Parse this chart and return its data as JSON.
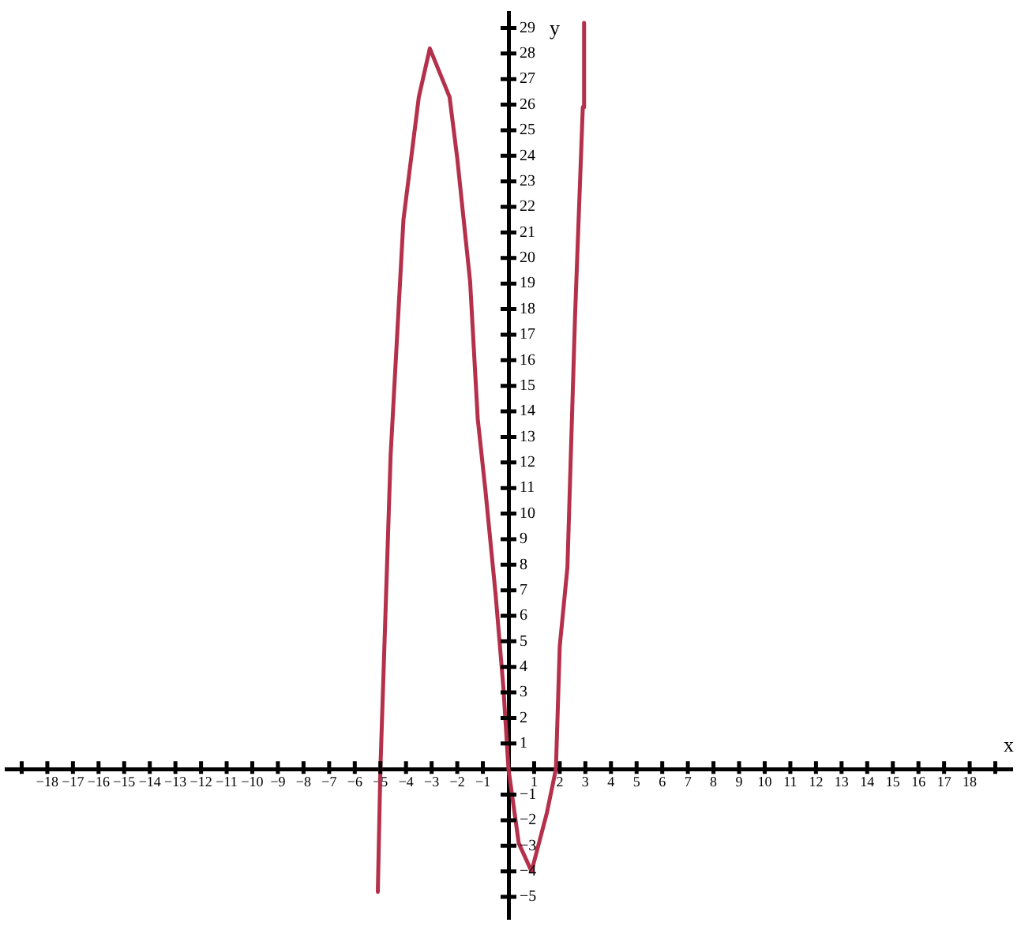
{
  "chart_data": {
    "type": "line",
    "xlabel": "x",
    "ylabel": "y",
    "series": [
      {
        "color": "#b5304a",
        "x": [
          -5.1,
          -5.0,
          -4.6,
          -4.1,
          -3.5,
          -3.07,
          -2.3,
          -2.0,
          -1.5,
          -1.2,
          -0.9,
          -0.5,
          -0.2,
          0,
          0.4,
          0.9,
          1.5,
          1.85,
          2.0,
          2.3,
          2.6,
          2.9,
          2.95
        ],
        "values": [
          -4.8,
          0,
          12.3,
          21.5,
          26.3,
          28.2,
          26.3,
          23.9,
          19.1,
          13.7,
          10.9,
          6.8,
          3.2,
          0,
          -2.9,
          -4.0,
          -1.7,
          0,
          4.8,
          7.9,
          17.8,
          25.9,
          29.2
        ]
      }
    ],
    "xlim": [
      -19.6,
      19.6
    ],
    "ylim": [
      -5.8,
      29.6
    ],
    "xticks": [
      {
        "value": -19,
        "label": null
      },
      {
        "value": -18,
        "label": "−18"
      },
      {
        "value": -17,
        "label": "−17"
      },
      {
        "value": -16,
        "label": "−16"
      },
      {
        "value": -15,
        "label": "−15"
      },
      {
        "value": -14,
        "label": "−14"
      },
      {
        "value": -13,
        "label": "−13"
      },
      {
        "value": -12,
        "label": "−12"
      },
      {
        "value": -11,
        "label": "−11"
      },
      {
        "value": -10,
        "label": "−10"
      },
      {
        "value": -9,
        "label": "−9"
      },
      {
        "value": -8,
        "label": "−8"
      },
      {
        "value": -7,
        "label": "−7"
      },
      {
        "value": -6,
        "label": "−6"
      },
      {
        "value": -5,
        "label": "−5"
      },
      {
        "value": -4,
        "label": "−4"
      },
      {
        "value": -3,
        "label": "−3"
      },
      {
        "value": -2,
        "label": "−2"
      },
      {
        "value": -1,
        "label": "−1"
      },
      1,
      2,
      3,
      4,
      5,
      6,
      7,
      8,
      9,
      10,
      11,
      12,
      13,
      14,
      15,
      16,
      17,
      18,
      {
        "value": 19,
        "label": null
      }
    ],
    "yticks": [
      {
        "value": -5,
        "label": "−5"
      },
      {
        "value": -4,
        "label": "−4"
      },
      {
        "value": -3,
        "label": "−3"
      },
      {
        "value": -2,
        "label": "−2"
      },
      {
        "value": -1,
        "label": "−1"
      },
      1,
      2,
      3,
      4,
      5,
      6,
      7,
      8,
      9,
      10,
      11,
      12,
      13,
      14,
      15,
      16,
      17,
      18,
      19,
      20,
      21,
      22,
      23,
      24,
      25,
      26,
      27,
      28,
      29
    ],
    "grid": false,
    "legend": false,
    "marker": "none",
    "line_style": "solid"
  }
}
